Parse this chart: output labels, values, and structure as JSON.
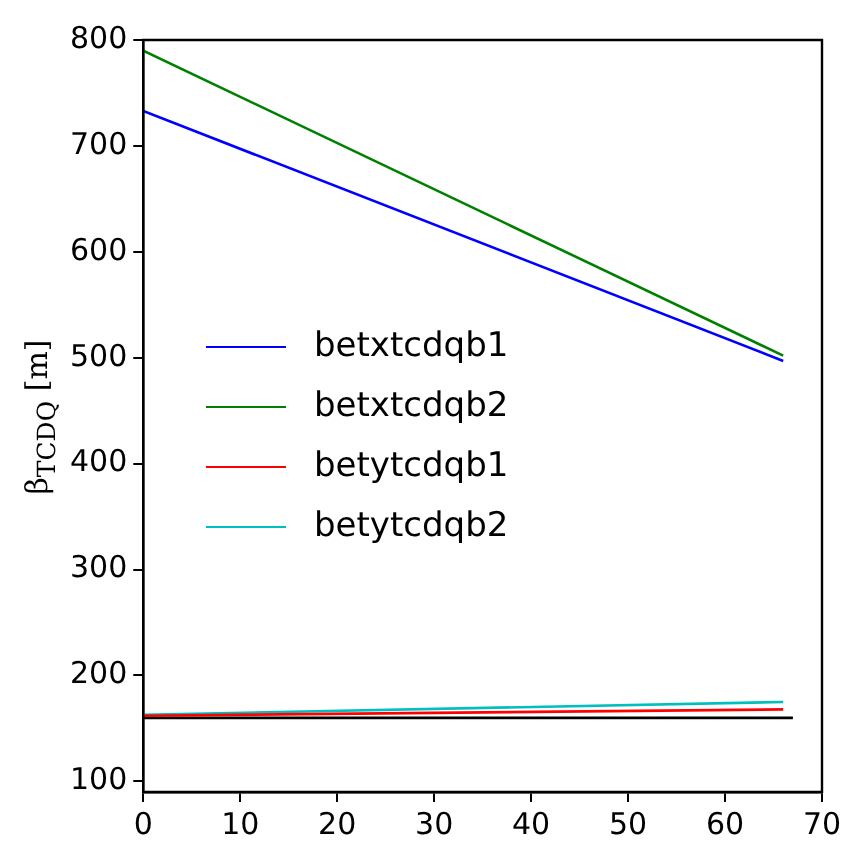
{
  "chart_data": {
    "type": "line",
    "ylabel": "β$_{TCDQ}$ [m]",
    "xlim": [
      0,
      70
    ],
    "ylim": [
      90,
      800
    ],
    "xticks": [
      0,
      10,
      20,
      30,
      40,
      50,
      60,
      70
    ],
    "yticks": [
      100,
      200,
      300,
      400,
      500,
      600,
      700,
      800
    ],
    "grid": false,
    "legend": "left",
    "marker": "none",
    "line_style": "solid",
    "series": [
      {
        "name": "betxtcdqb1",
        "color": "#0000ff",
        "x": [
          0,
          66
        ],
        "values": [
          733,
          497
        ]
      },
      {
        "name": "betxtcdqb2",
        "color": "#008000",
        "x": [
          0,
          66
        ],
        "values": [
          790,
          502
        ]
      },
      {
        "name": "betytcdqb1",
        "color": "#ff0000",
        "x": [
          0,
          66
        ],
        "values": [
          162,
          168
        ]
      },
      {
        "name": "betytcdqb2",
        "color": "#00bfbf",
        "x": [
          0,
          66
        ],
        "values": [
          163,
          175
        ]
      },
      {
        "color": "#000000",
        "x": [
          0,
          67
        ],
        "values": [
          160,
          160
        ]
      }
    ]
  }
}
